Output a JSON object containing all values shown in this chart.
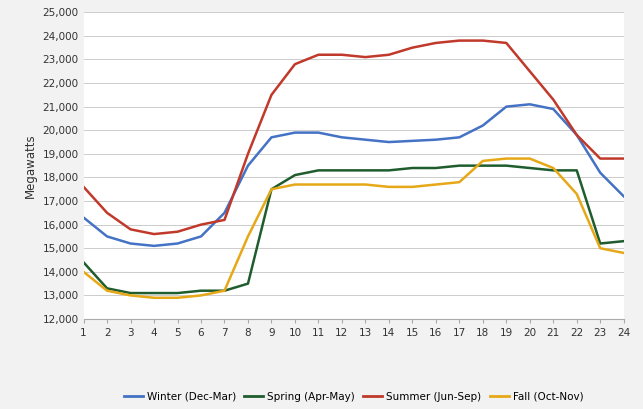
{
  "hours": [
    1,
    2,
    3,
    4,
    5,
    6,
    7,
    8,
    9,
    10,
    11,
    12,
    13,
    14,
    15,
    16,
    17,
    18,
    19,
    20,
    21,
    22,
    23,
    24
  ],
  "winter": [
    16300,
    15500,
    15200,
    15100,
    15200,
    15500,
    16500,
    18500,
    19700,
    19900,
    19900,
    19700,
    19600,
    19500,
    19550,
    19600,
    19700,
    20200,
    21000,
    21100,
    20900,
    19800,
    18200,
    17200
  ],
  "spring": [
    14400,
    13300,
    13100,
    13100,
    13100,
    13200,
    13200,
    13500,
    17500,
    18100,
    18300,
    18300,
    18300,
    18300,
    18400,
    18400,
    18500,
    18500,
    18500,
    18400,
    18300,
    18300,
    15200,
    15300
  ],
  "summer": [
    17600,
    16500,
    15800,
    15600,
    15700,
    16000,
    16200,
    19000,
    21500,
    22800,
    23200,
    23200,
    23100,
    23200,
    23500,
    23700,
    23800,
    23800,
    23700,
    22500,
    21300,
    19800,
    18800,
    18800
  ],
  "fall": [
    14000,
    13200,
    13000,
    12900,
    12900,
    13000,
    13200,
    15500,
    17500,
    17700,
    17700,
    17700,
    17700,
    17600,
    17600,
    17700,
    17800,
    18700,
    18800,
    18800,
    18400,
    17300,
    15000,
    14800
  ],
  "winter_color": "#4472C4",
  "spring_color": "#1F5C2E",
  "summer_color": "#C0392B",
  "fall_color": "#E6A817",
  "ylabel": "Megawatts",
  "ylim": [
    12000,
    25000
  ],
  "yticks": [
    12000,
    13000,
    14000,
    15000,
    16000,
    17000,
    18000,
    19000,
    20000,
    21000,
    22000,
    23000,
    24000,
    25000
  ],
  "bg_color": "#F2F2F2",
  "plot_bg_color": "#FFFFFF",
  "legend_labels": [
    "Winter (Dec-Mar)",
    "Spring (Apr-May)",
    "Summer (Jun-Sep)",
    "Fall (Oct-Nov)"
  ]
}
